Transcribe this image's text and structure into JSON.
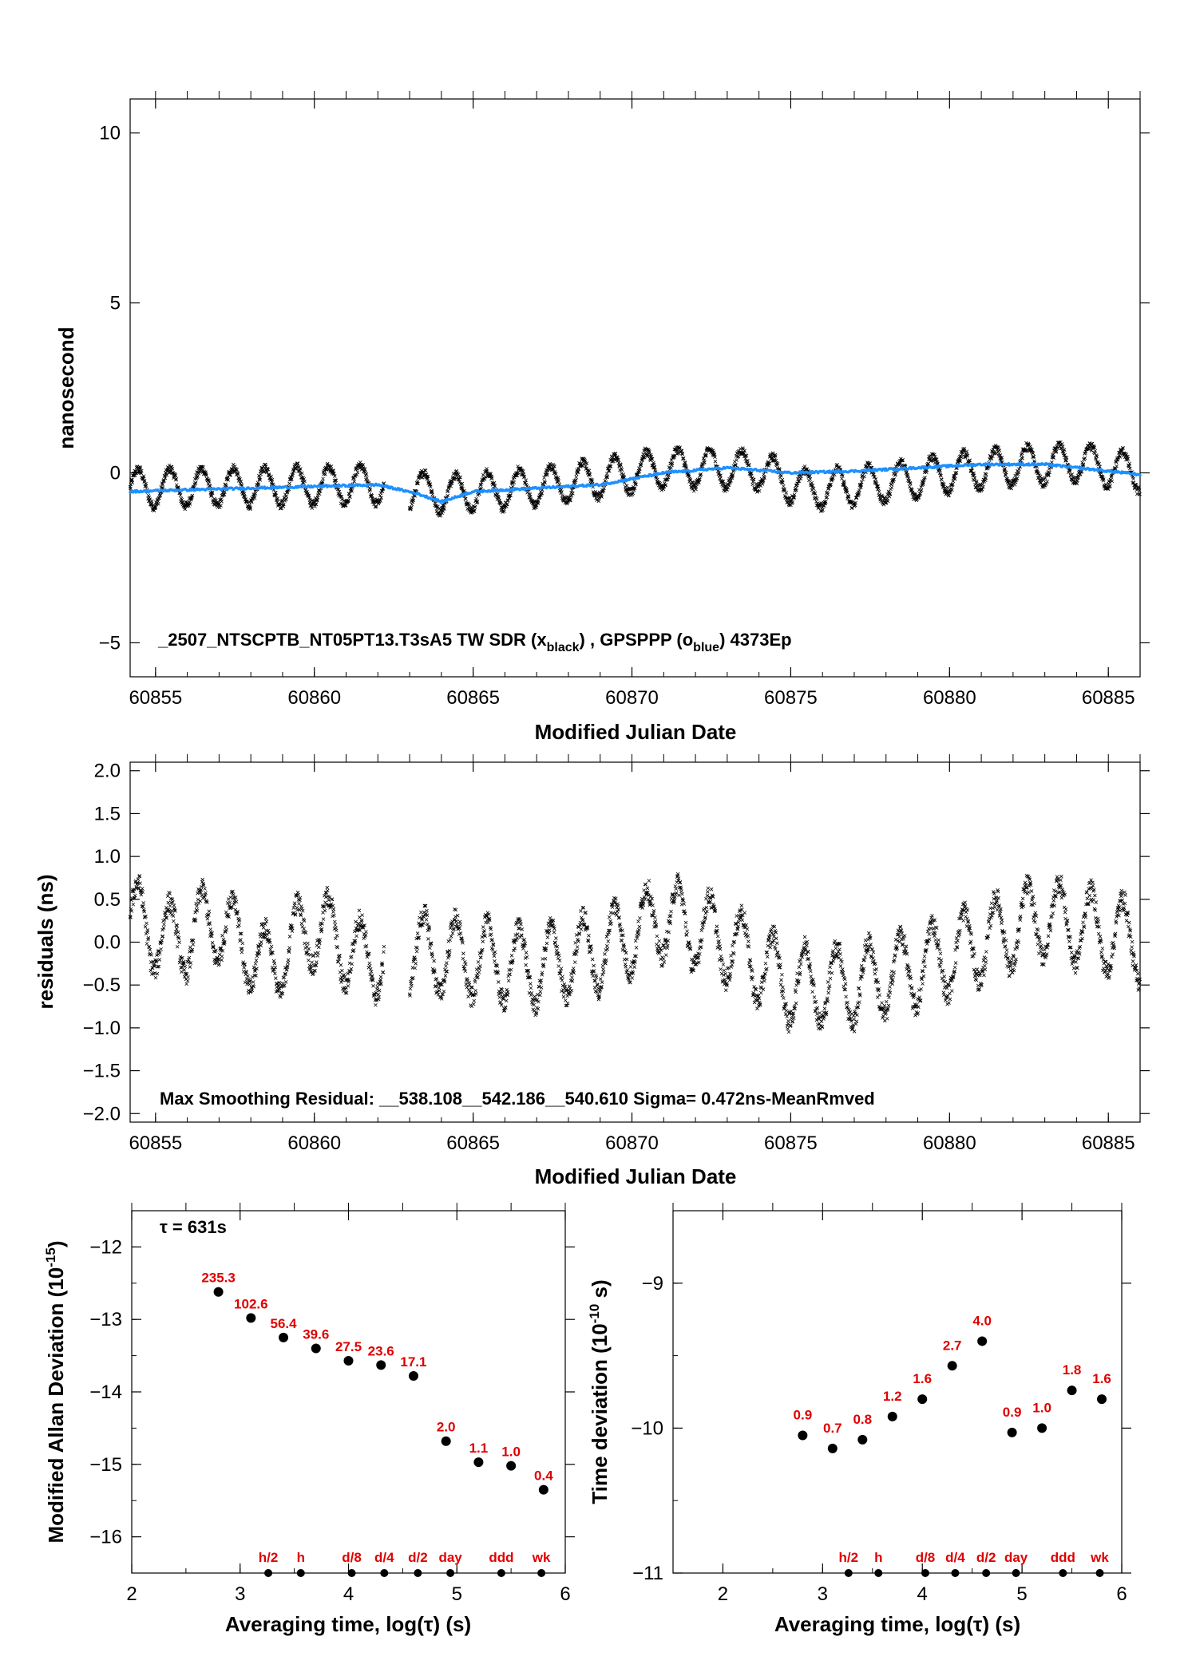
{
  "colors": {
    "black_series": "#000000",
    "blue_series": "#1e90ff",
    "labels_red": "#e00000"
  },
  "chart_data": [
    {
      "type": "scatter",
      "xlabel": "Modified Julian Date",
      "ylabel": "nanosecond",
      "xlim": [
        60854.2,
        60886.0
      ],
      "ylim": [
        -6.0,
        11.0
      ],
      "xticks": [
        "60855",
        "60860",
        "60865",
        "60870",
        "60875",
        "60880",
        "60885"
      ],
      "yticks": [
        "−5",
        "0",
        "5",
        "10"
      ],
      "annotation": {
        "prefix": "_2507_NTSCPTB_NT05PT13.T3sA5     TW SDR (x",
        "sub1": "black",
        "mid": ") ,  GPSPPP (o",
        "sub2": "blue",
        "suffix": ")  4373Ep"
      },
      "series": [
        {
          "marker": "x",
          "color": "#000000",
          "segments": [
            [
              60854.2,
              60862.2
            ],
            [
              60863.0,
              60886.0
            ]
          ],
          "baseline": [
            [
              60854.2,
              -0.45
            ],
            [
              60858,
              -0.4
            ],
            [
              60862,
              -0.35
            ],
            [
              60864,
              -0.6
            ],
            [
              60866,
              -0.5
            ],
            [
              60868,
              -0.3
            ],
            [
              60871,
              0.15
            ],
            [
              60874,
              0.1
            ],
            [
              60875.5,
              -0.5
            ],
            [
              60878,
              -0.3
            ],
            [
              60880,
              0.0
            ],
            [
              60882,
              0.2
            ],
            [
              60884,
              0.3
            ],
            [
              60886,
              0.0
            ]
          ],
          "diurnal_amplitude": 0.55
        },
        {
          "marker": "o",
          "color": "#1e90ff",
          "points": [
            [
              60854.2,
              -0.55
            ],
            [
              60856,
              -0.5
            ],
            [
              60858,
              -0.45
            ],
            [
              60860,
              -0.4
            ],
            [
              60862,
              -0.35
            ],
            [
              60863.2,
              -0.6
            ],
            [
              60864,
              -0.85
            ],
            [
              60865,
              -0.55
            ],
            [
              60867,
              -0.45
            ],
            [
              60869,
              -0.35
            ],
            [
              60871,
              0.0
            ],
            [
              60873,
              0.15
            ],
            [
              60875,
              0.0
            ],
            [
              60877,
              0.05
            ],
            [
              60879,
              0.15
            ],
            [
              60881,
              0.25
            ],
            [
              60883,
              0.25
            ],
            [
              60886,
              -0.05
            ]
          ]
        }
      ]
    },
    {
      "type": "scatter",
      "xlabel": "Modified Julian Date",
      "ylabel": "residuals (ns)",
      "xlim": [
        60854.2,
        60886.0
      ],
      "ylim": [
        -2.1,
        2.1
      ],
      "xticks": [
        "60855",
        "60860",
        "60865",
        "60870",
        "60875",
        "60880",
        "60885"
      ],
      "yticks": [
        "−2.0",
        "−1.5",
        "−1.0",
        "−0.5",
        "0.0",
        "0.5",
        "1.0",
        "1.5",
        "2.0"
      ],
      "annotation": "Max Smoothing Residual: __538.108__542.186__540.610  Sigma= 0.472ns-MeanRmved",
      "series": [
        {
          "marker": "x",
          "color": "#000000",
          "segments": [
            [
              60854.2,
              60862.2
            ],
            [
              60863.0,
              60886.0
            ]
          ],
          "baseline": [
            [
              60854.2,
              0.3
            ],
            [
              60855.5,
              0.0
            ],
            [
              60857,
              0.25
            ],
            [
              60858.5,
              -0.3
            ],
            [
              60860,
              0.2
            ],
            [
              60861.5,
              -0.2
            ],
            [
              60863,
              -0.1
            ],
            [
              60865,
              -0.2
            ],
            [
              60867,
              -0.3
            ],
            [
              60869,
              -0.1
            ],
            [
              60871,
              0.3
            ],
            [
              60873,
              0.0
            ],
            [
              60875,
              -0.5
            ],
            [
              60877,
              -0.5
            ],
            [
              60879,
              -0.3
            ],
            [
              60881,
              0.0
            ],
            [
              60883,
              0.3
            ],
            [
              60886,
              0.0
            ]
          ],
          "diurnal_amplitude": 0.45
        }
      ]
    },
    {
      "type": "scatter",
      "xlabel": "Averaging time, log(τ) (s)",
      "ylabel": "Modified Allan Deviation (10",
      "ylabel_sup": "-15",
      "ylabel_end": ")",
      "xlim": [
        2,
        6
      ],
      "ylim": [
        -16.5,
        -11.5
      ],
      "xticks": [
        "2",
        "3",
        "4",
        "5",
        "6"
      ],
      "yticks": [
        "−16",
        "−15",
        "−14",
        "−13",
        "−12"
      ],
      "tau_note": "τ = 631s",
      "points": [
        {
          "x": 2.8,
          "y": -12.62,
          "label": "235.3"
        },
        {
          "x": 3.1,
          "y": -12.98,
          "label": "102.6"
        },
        {
          "x": 3.4,
          "y": -13.25,
          "label": "56.4"
        },
        {
          "x": 3.7,
          "y": -13.4,
          "label": "39.6"
        },
        {
          "x": 4.0,
          "y": -13.57,
          "label": "27.5"
        },
        {
          "x": 4.3,
          "y": -13.63,
          "label": "23.6"
        },
        {
          "x": 4.6,
          "y": -13.78,
          "label": "17.1"
        },
        {
          "x": 4.9,
          "y": -14.68,
          "label": "2.0"
        },
        {
          "x": 5.2,
          "y": -14.97,
          "label": "1.1"
        },
        {
          "x": 5.5,
          "y": -15.02,
          "label": "1.0"
        },
        {
          "x": 5.8,
          "y": -15.35,
          "label": "0.4"
        }
      ],
      "markers": [
        {
          "x": 3.26,
          "label": "h/2"
        },
        {
          "x": 3.56,
          "label": "h"
        },
        {
          "x": 4.03,
          "label": "d/8"
        },
        {
          "x": 4.33,
          "label": "d/4"
        },
        {
          "x": 4.64,
          "label": "d/2"
        },
        {
          "x": 4.94,
          "label": "day"
        },
        {
          "x": 5.41,
          "label": "ddd"
        },
        {
          "x": 5.78,
          "label": "wk"
        }
      ]
    },
    {
      "type": "scatter",
      "xlabel": "Averaging time, log(τ) (s)",
      "ylabel": "Time deviation (10",
      "ylabel_sup": "-10",
      "ylabel_end": " s)",
      "xlim": [
        1.5,
        6.0
      ],
      "ylim": [
        -11.0,
        -8.5
      ],
      "xticks": [
        "2",
        "3",
        "4",
        "5",
        "6"
      ],
      "yticks": [
        "−11",
        "−10",
        "−9"
      ],
      "points": [
        {
          "x": 2.8,
          "y": -10.05,
          "label": "0.9"
        },
        {
          "x": 3.1,
          "y": -10.14,
          "label": "0.7"
        },
        {
          "x": 3.4,
          "y": -10.08,
          "label": "0.8"
        },
        {
          "x": 3.7,
          "y": -9.92,
          "label": "1.2"
        },
        {
          "x": 4.0,
          "y": -9.8,
          "label": "1.6"
        },
        {
          "x": 4.3,
          "y": -9.57,
          "label": "2.7"
        },
        {
          "x": 4.6,
          "y": -9.4,
          "label": "4.0"
        },
        {
          "x": 4.9,
          "y": -10.03,
          "label": "0.9"
        },
        {
          "x": 5.2,
          "y": -10.0,
          "label": "1.0"
        },
        {
          "x": 5.5,
          "y": -9.74,
          "label": "1.8"
        },
        {
          "x": 5.8,
          "y": -9.8,
          "label": "1.6"
        }
      ],
      "markers": [
        {
          "x": 3.26,
          "label": "h/2"
        },
        {
          "x": 3.56,
          "label": "h"
        },
        {
          "x": 4.03,
          "label": "d/8"
        },
        {
          "x": 4.33,
          "label": "d/4"
        },
        {
          "x": 4.64,
          "label": "d/2"
        },
        {
          "x": 4.94,
          "label": "day"
        },
        {
          "x": 5.41,
          "label": "ddd"
        },
        {
          "x": 5.78,
          "label": "wk"
        }
      ]
    }
  ]
}
